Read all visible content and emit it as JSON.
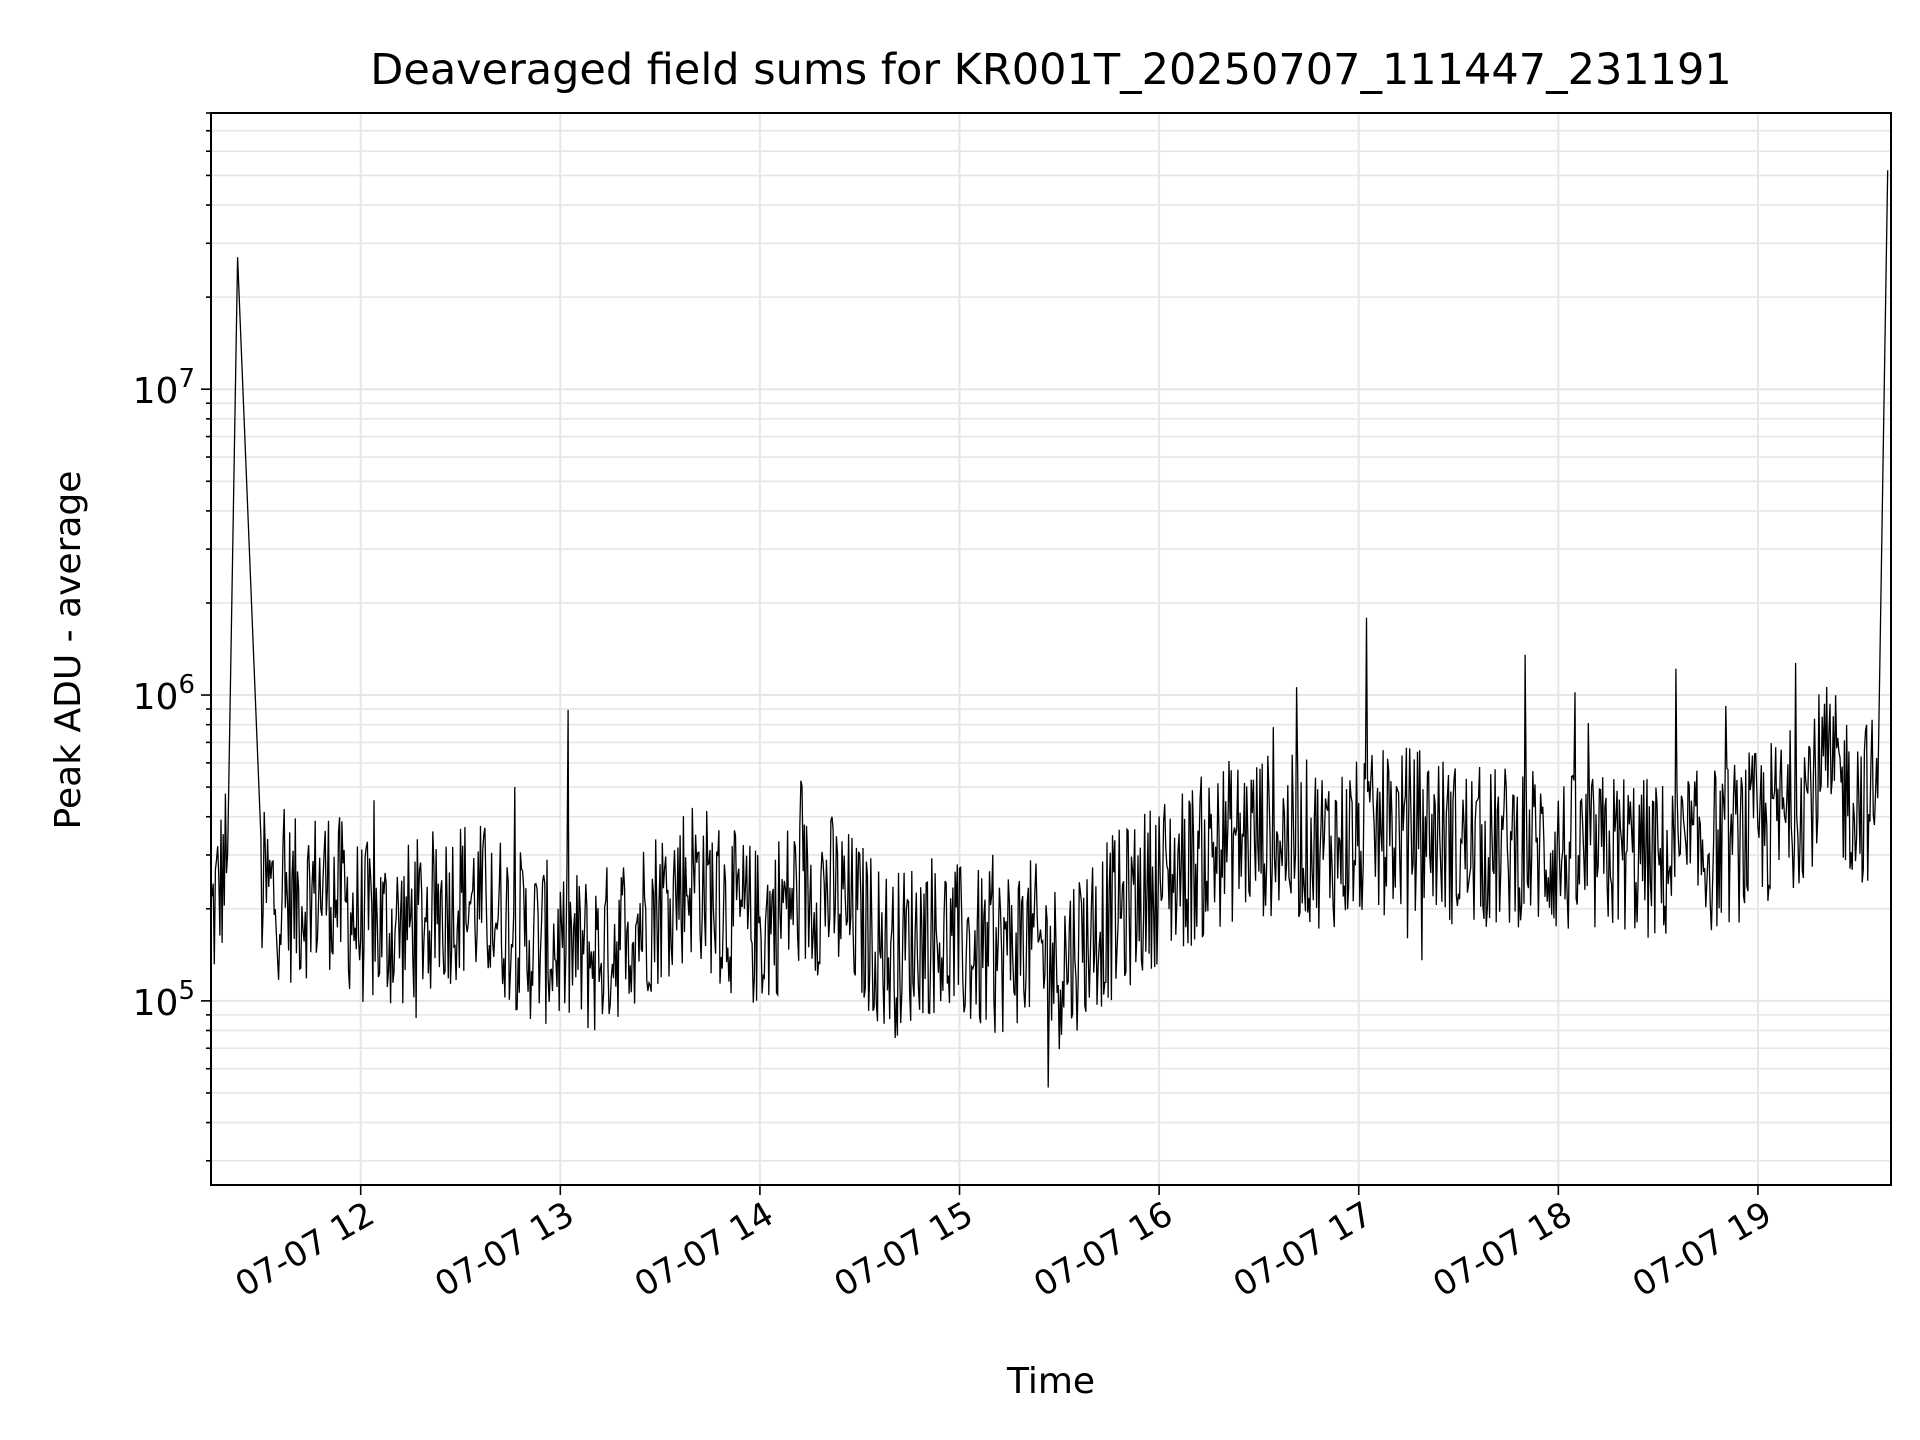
{
  "chart_data": {
    "type": "line",
    "title": "Deaveraged field sums for KR001T_20250707_111447_231191",
    "xlabel": "Time",
    "ylabel": "Peak ADU - average",
    "x_range": [
      "2025-07-07T11:15:00",
      "2025-07-07T19:40:00"
    ],
    "y_scale": "log",
    "ylim": [
      25000,
      80000000
    ],
    "grid": true,
    "x_ticks": [
      {
        "t": "2025-07-07T12:00:00",
        "label": "07-07 12"
      },
      {
        "t": "2025-07-07T13:00:00",
        "label": "07-07 13"
      },
      {
        "t": "2025-07-07T14:00:00",
        "label": "07-07 14"
      },
      {
        "t": "2025-07-07T15:00:00",
        "label": "07-07 15"
      },
      {
        "t": "2025-07-07T16:00:00",
        "label": "07-07 16"
      },
      {
        "t": "2025-07-07T17:00:00",
        "label": "07-07 17"
      },
      {
        "t": "2025-07-07T18:00:00",
        "label": "07-07 18"
      },
      {
        "t": "2025-07-07T19:00:00",
        "label": "07-07 19"
      }
    ],
    "y_ticks": [
      {
        "value": 100000,
        "base": "10",
        "exp": "5"
      },
      {
        "value": 1000000,
        "base": "10",
        "exp": "6"
      },
      {
        "value": 10000000,
        "base": "10",
        "exp": "7"
      }
    ],
    "series": [
      {
        "color": "#000000",
        "x": [
          "2025-07-07T11:15:00",
          "2025-07-07T11:20:00",
          "2025-07-07T11:23:00",
          "2025-07-07T11:30:00",
          "2025-07-07T11:40:00",
          "2025-07-07T11:50:00",
          "2025-07-07T12:00:00",
          "2025-07-07T12:10:00",
          "2025-07-07T12:20:00",
          "2025-07-07T12:30:00",
          "2025-07-07T12:40:00",
          "2025-07-07T12:50:00",
          "2025-07-07T13:00:00",
          "2025-07-07T13:10:00",
          "2025-07-07T13:20:00",
          "2025-07-07T13:30:00",
          "2025-07-07T13:40:00",
          "2025-07-07T13:50:00",
          "2025-07-07T14:00:00",
          "2025-07-07T14:10:00",
          "2025-07-07T14:20:00",
          "2025-07-07T14:30:00",
          "2025-07-07T14:40:00",
          "2025-07-07T14:50:00",
          "2025-07-07T15:00:00",
          "2025-07-07T15:10:00",
          "2025-07-07T15:20:00",
          "2025-07-07T15:30:00",
          "2025-07-07T15:40:00",
          "2025-07-07T15:50:00",
          "2025-07-07T16:00:00",
          "2025-07-07T16:10:00",
          "2025-07-07T16:20:00",
          "2025-07-07T16:30:00",
          "2025-07-07T16:40:00",
          "2025-07-07T16:50:00",
          "2025-07-07T17:00:00",
          "2025-07-07T17:10:00",
          "2025-07-07T17:20:00",
          "2025-07-07T17:30:00",
          "2025-07-07T17:40:00",
          "2025-07-07T17:50:00",
          "2025-07-07T18:00:00",
          "2025-07-07T18:10:00",
          "2025-07-07T18:20:00",
          "2025-07-07T18:30:00",
          "2025-07-07T18:40:00",
          "2025-07-07T18:50:00",
          "2025-07-07T19:00:00",
          "2025-07-07T19:10:00",
          "2025-07-07T19:20:00",
          "2025-07-07T19:30:00",
          "2025-07-07T19:36:00",
          "2025-07-07T19:39:00"
        ],
        "y": [
          180000,
          300000,
          27000000,
          230000,
          210000,
          240000,
          180000,
          170000,
          190000,
          220000,
          200000,
          160000,
          150000,
          140000,
          170000,
          210000,
          260000,
          200000,
          170000,
          220000,
          230000,
          180000,
          140000,
          170000,
          150000,
          140000,
          160000,
          130000,
          170000,
          200000,
          250000,
          280000,
          330000,
          350000,
          340000,
          320000,
          330000,
          360000,
          370000,
          320000,
          310000,
          330000,
          300000,
          290000,
          310000,
          280000,
          300000,
          320000,
          360000,
          420000,
          580000,
          450000,
          460000,
          52000000
        ]
      }
    ],
    "annotations": []
  }
}
